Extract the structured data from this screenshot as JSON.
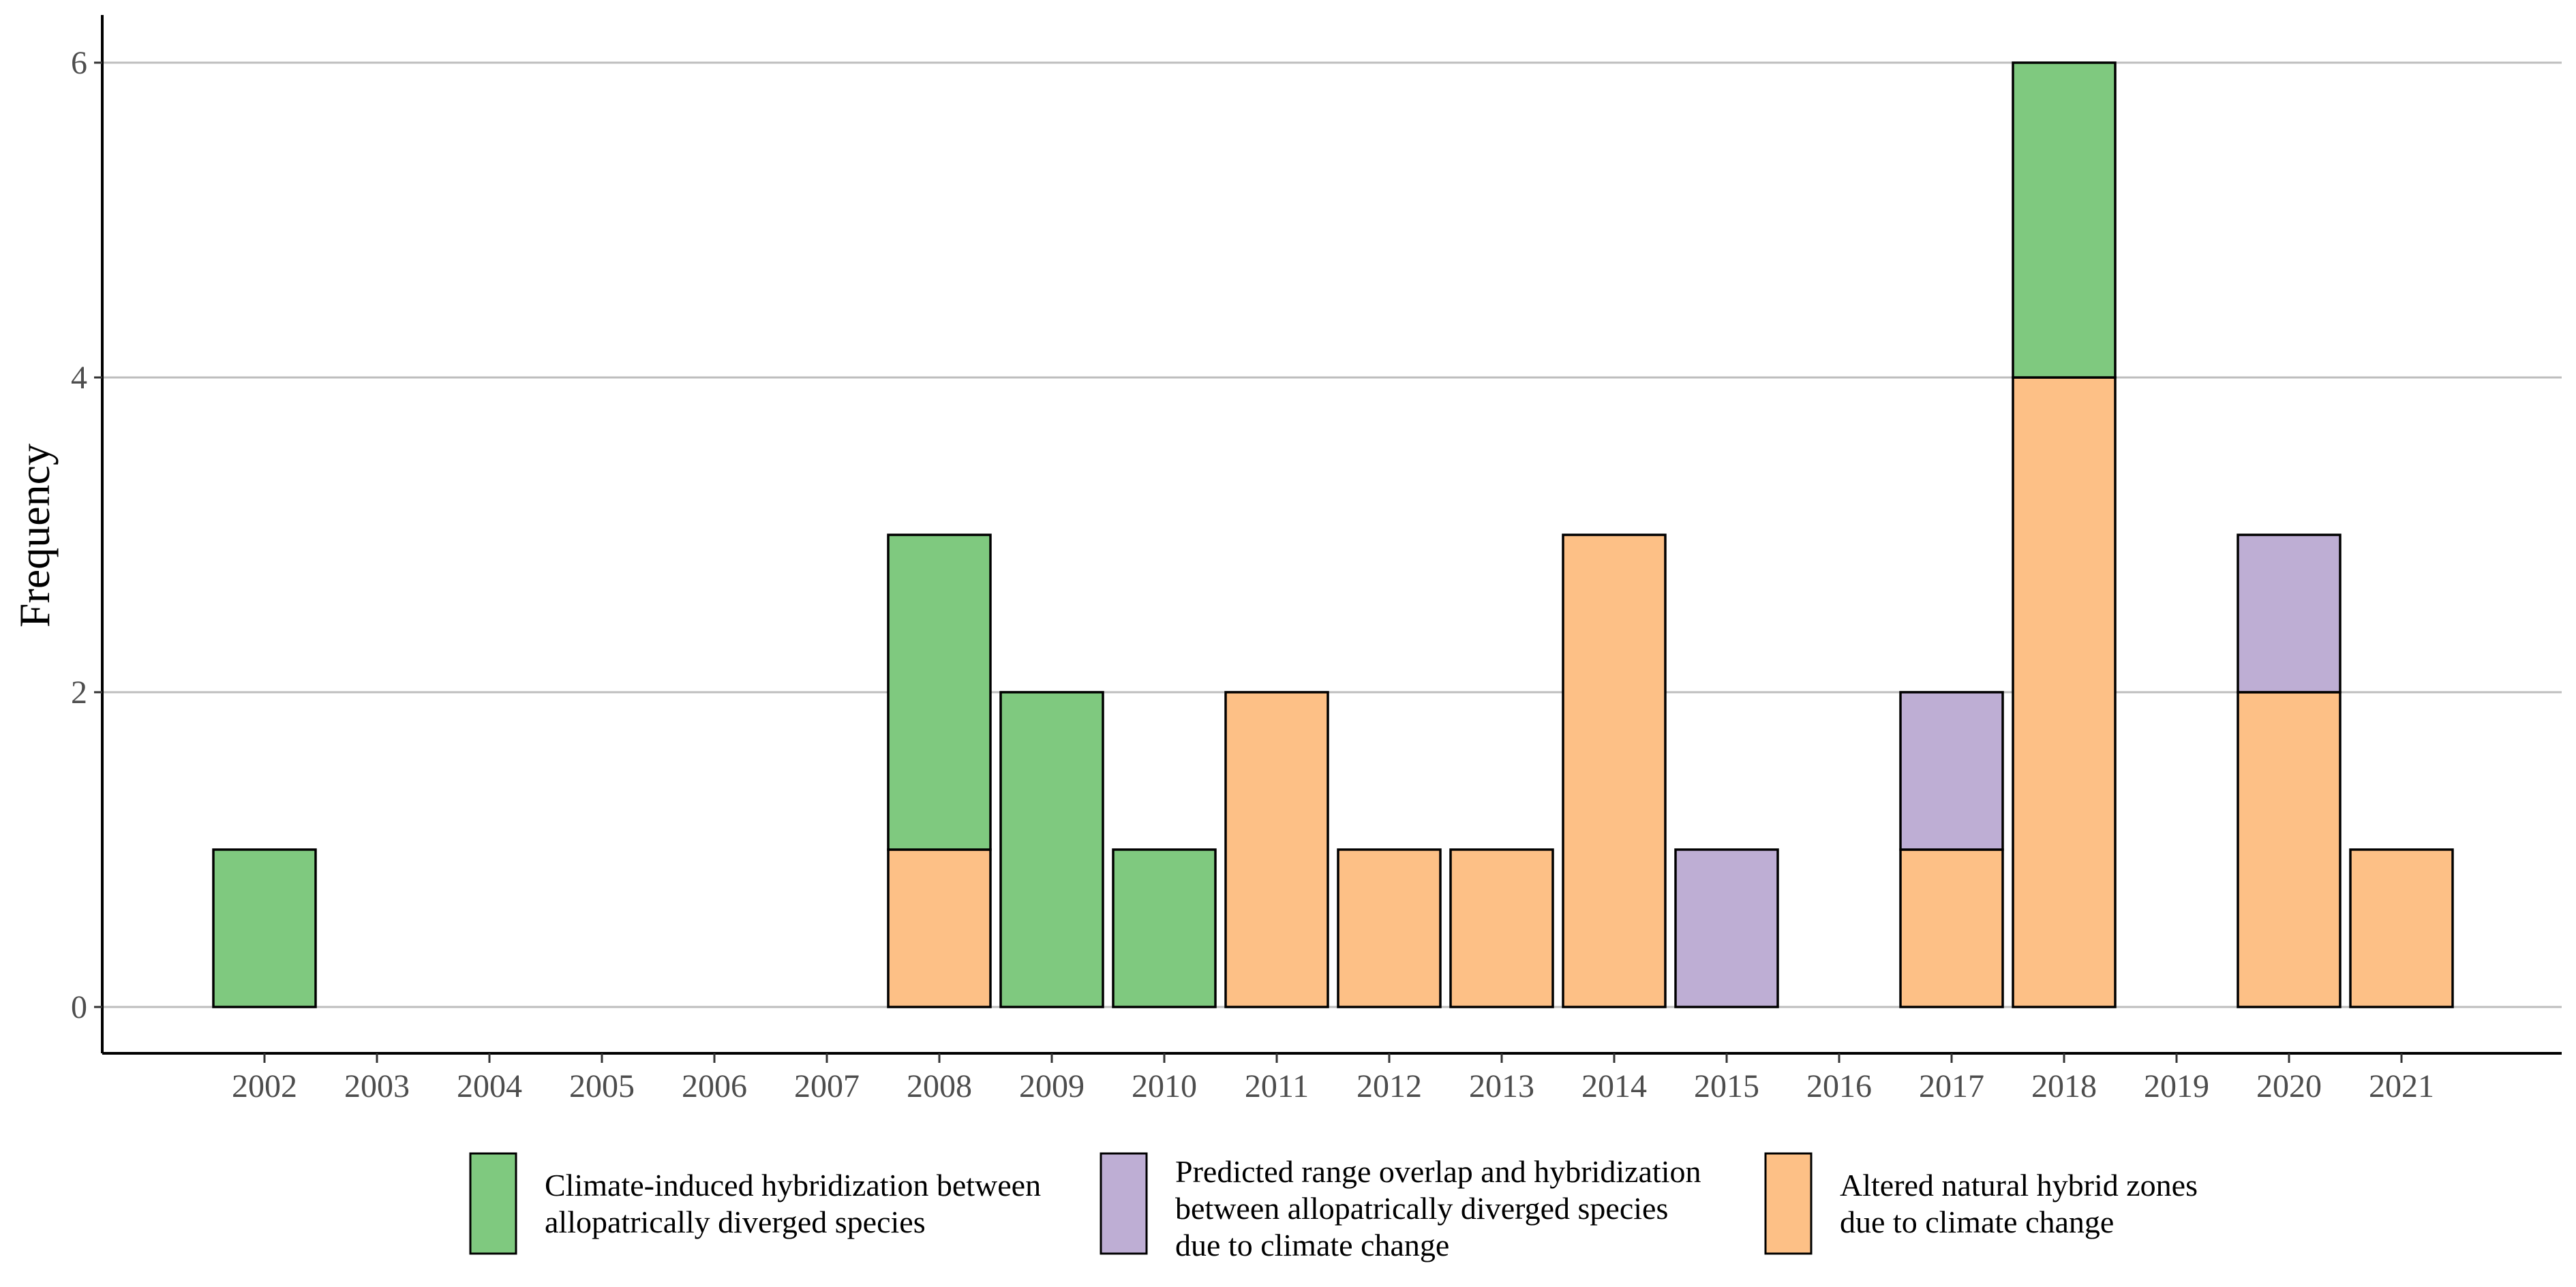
{
  "chart_data": {
    "type": "bar",
    "stacked": true,
    "title": "",
    "xlabel": "",
    "ylabel": "Frequency",
    "ylim": [
      0,
      6.3
    ],
    "y_ticks": [
      0,
      2,
      4,
      6
    ],
    "grid": "horizontal major lines",
    "legend_position": "bottom",
    "categories": [
      "2002",
      "2003",
      "2004",
      "2005",
      "2006",
      "2007",
      "2008",
      "2009",
      "2010",
      "2011",
      "2012",
      "2013",
      "2014",
      "2015",
      "2016",
      "2017",
      "2018",
      "2019",
      "2020",
      "2021"
    ],
    "series": [
      {
        "name": "Altered natural hybrid zones due to climate change",
        "legend_lines": [
          "Altered natural hybrid zones",
          "due to climate change"
        ],
        "color": "#fdc086",
        "values": [
          0,
          0,
          0,
          0,
          0,
          0,
          1,
          0,
          0,
          2,
          1,
          1,
          3,
          0,
          0,
          1,
          4,
          0,
          2,
          1
        ]
      },
      {
        "name": "Predicted range overlap and hybridization between allopatrically diverged species due to climate change",
        "legend_lines": [
          "Predicted range overlap and hybridization",
          "between allopatrically diverged species",
          "due to climate change"
        ],
        "color": "#beaed4",
        "values": [
          0,
          0,
          0,
          0,
          0,
          0,
          0,
          0,
          0,
          0,
          0,
          0,
          0,
          1,
          0,
          1,
          0,
          0,
          1,
          0
        ]
      },
      {
        "name": "Climate-induced hybridization between allopatrically diverged species",
        "legend_lines": [
          "Climate-induced hybridization between",
          "allopatrically diverged species"
        ],
        "color": "#7fc97f",
        "values": [
          1,
          0,
          0,
          0,
          0,
          0,
          2,
          2,
          1,
          0,
          0,
          0,
          0,
          0,
          0,
          0,
          2,
          0,
          0,
          0
        ]
      }
    ],
    "legend_order": [
      2,
      1,
      0
    ]
  }
}
